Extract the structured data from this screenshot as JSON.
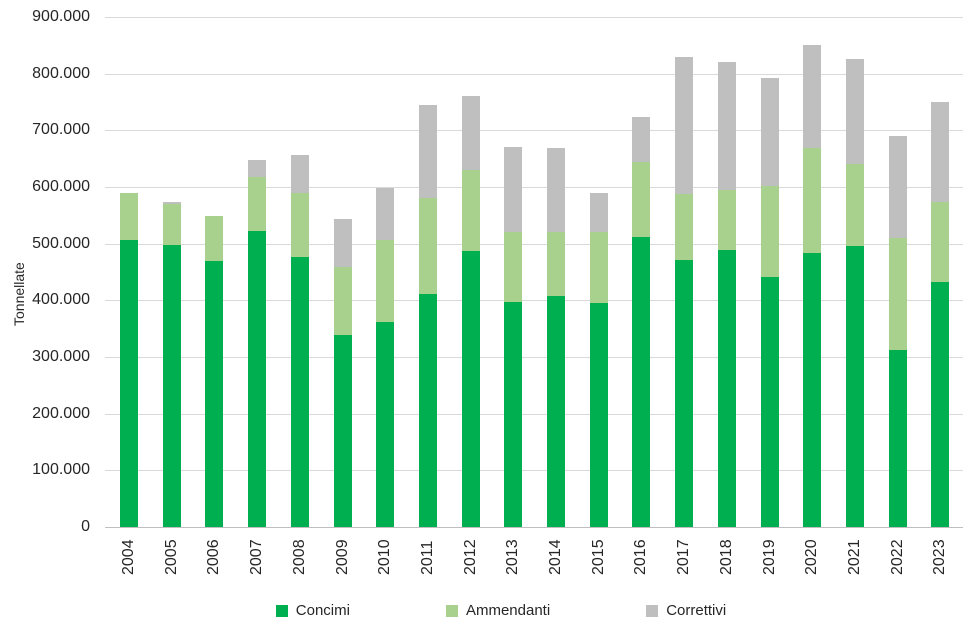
{
  "chart_data": {
    "type": "bar",
    "stacked": true,
    "title": "",
    "xlabel": "",
    "ylabel": "Tonnellate",
    "ylim": [
      0,
      900000
    ],
    "ytick_interval": 100000,
    "ytick_labels": [
      "0",
      "100.000",
      "200.000",
      "300.000",
      "400.000",
      "500.000",
      "600.000",
      "700.000",
      "800.000",
      "900.000"
    ],
    "grid": true,
    "legend_position": "bottom",
    "categories": [
      "2004",
      "2005",
      "2006",
      "2007",
      "2008",
      "2009",
      "2010",
      "2011",
      "2012",
      "2013",
      "2014",
      "2015",
      "2016",
      "2017",
      "2018",
      "2019",
      "2020",
      "2021",
      "2022",
      "2023"
    ],
    "series": [
      {
        "name": "Concimi",
        "color": "#00B050",
        "values": [
          507000,
          498000,
          470000,
          522000,
          476000,
          338000,
          362000,
          411000,
          487000,
          397000,
          407000,
          395000,
          511000,
          471000,
          488000,
          441000,
          483000,
          496000,
          312000,
          432000
        ]
      },
      {
        "name": "Ammendanti",
        "color": "#A9D18E",
        "values": [
          83000,
          72000,
          78000,
          95000,
          113000,
          120000,
          145000,
          170000,
          143000,
          123000,
          113000,
          125000,
          133000,
          116000,
          107000,
          160000,
          186000,
          144000,
          198000,
          142000
        ]
      },
      {
        "name": "Correttivi",
        "color": "#BFBFBF",
        "values": [
          0,
          4000,
          0,
          31000,
          68000,
          86000,
          92000,
          163000,
          130000,
          151000,
          148000,
          69000,
          80000,
          242000,
          225000,
          192000,
          182000,
          186000,
          180000,
          176000
        ]
      }
    ]
  },
  "colors": {
    "gridline": "#D9D9D9",
    "axis_line": "#BFBFBF",
    "text": "#262626",
    "background": "#FFFFFF"
  }
}
